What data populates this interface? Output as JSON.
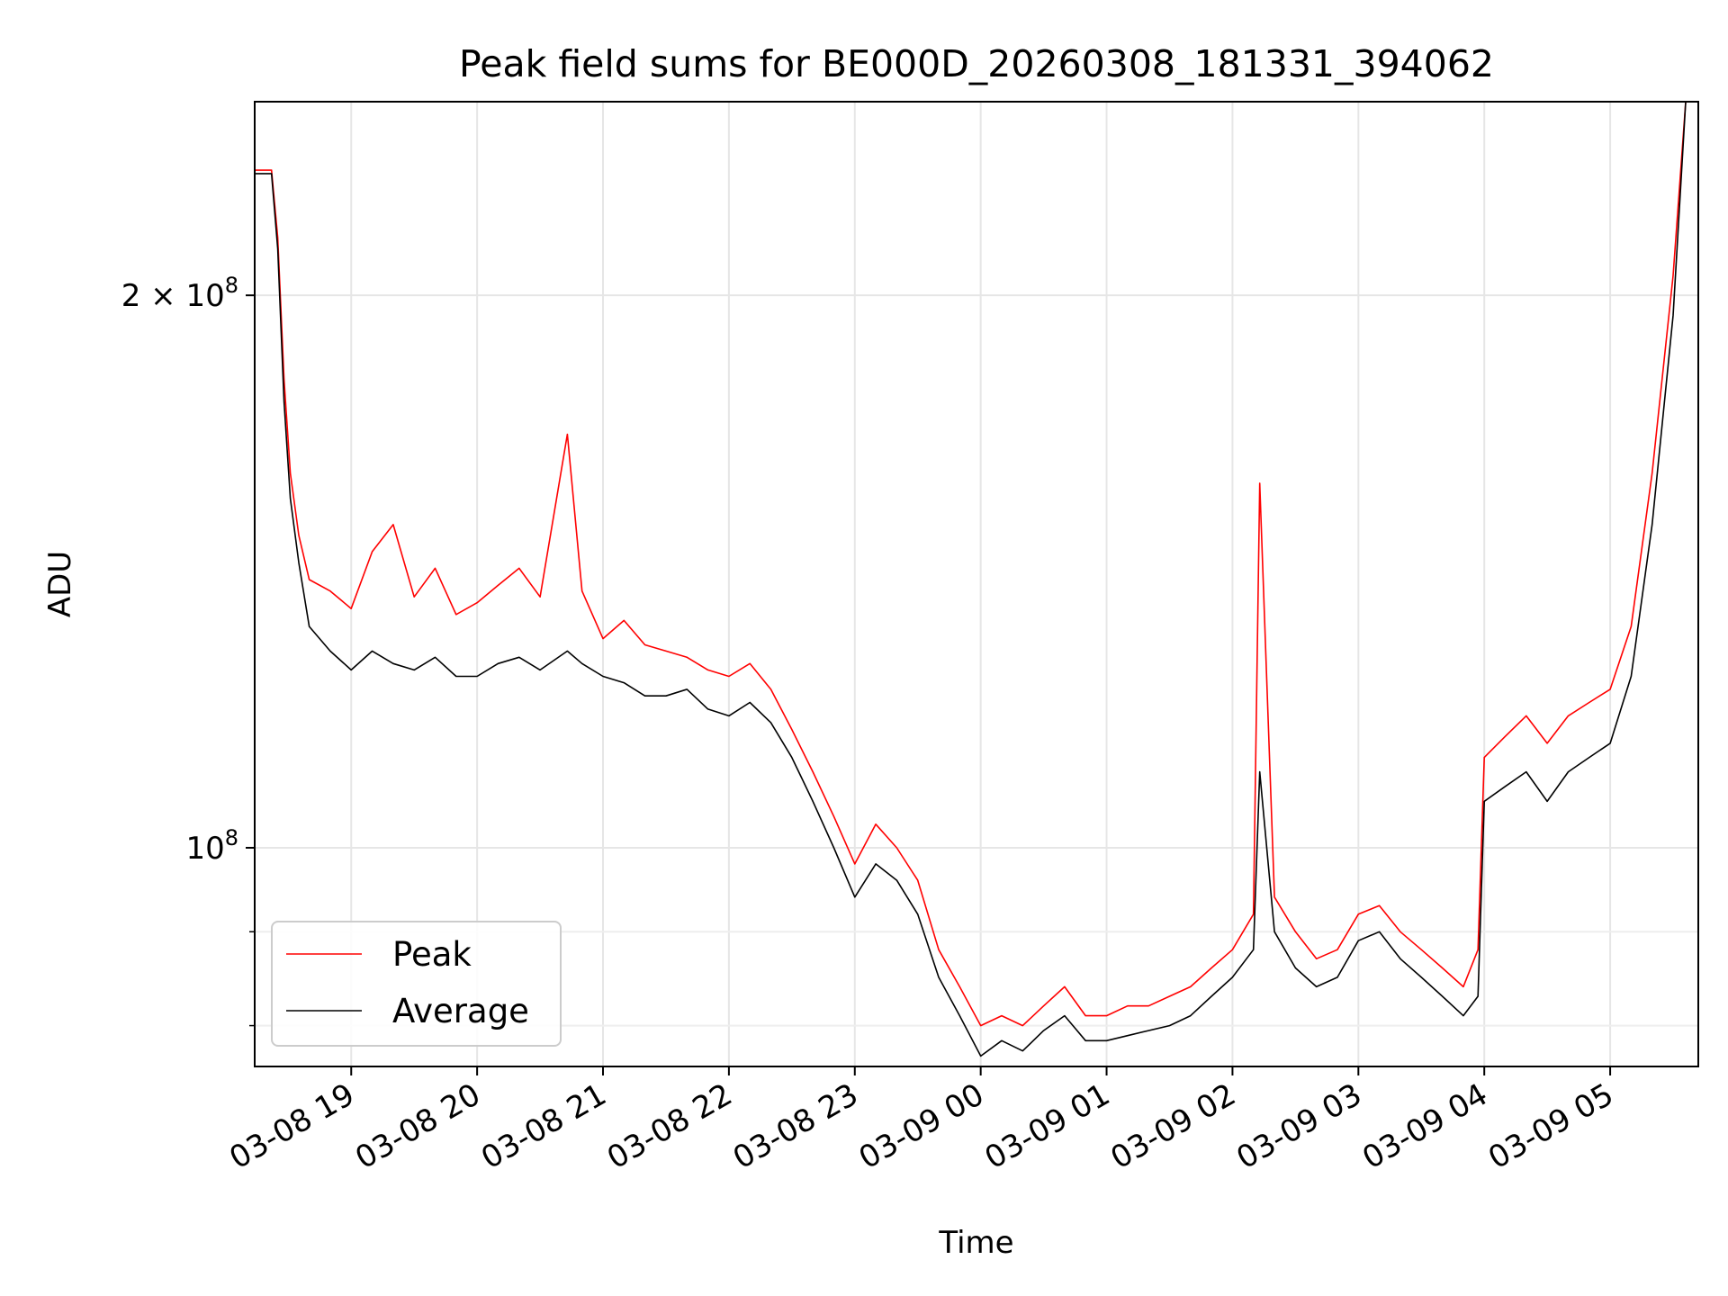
{
  "chart_data": {
    "type": "line",
    "title": "Peak field sums for BE000D_20260308_181331_394062",
    "xlabel": "Time",
    "ylabel": "ADU",
    "yscale": "log",
    "xlim": [
      "2026-03-08 18:14",
      "2026-03-09 05:42"
    ],
    "ylim": [
      76000000,
      255000000
    ],
    "grid": true,
    "legend": "lower-left",
    "x_ticks": [
      {
        "t": "2026-03-08 19:00",
        "label": "03-08 19"
      },
      {
        "t": "2026-03-08 20:00",
        "label": "03-08 20"
      },
      {
        "t": "2026-03-08 21:00",
        "label": "03-08 21"
      },
      {
        "t": "2026-03-08 22:00",
        "label": "03-08 22"
      },
      {
        "t": "2026-03-08 23:00",
        "label": "03-08 23"
      },
      {
        "t": "2026-03-09 00:00",
        "label": "03-09 00"
      },
      {
        "t": "2026-03-09 01:00",
        "label": "03-09 01"
      },
      {
        "t": "2026-03-09 02:00",
        "label": "03-09 02"
      },
      {
        "t": "2026-03-09 03:00",
        "label": "03-09 03"
      },
      {
        "t": "2026-03-09 04:00",
        "label": "03-09 04"
      },
      {
        "t": "2026-03-09 05:00",
        "label": "03-09 05"
      }
    ],
    "y_ticks_major": [
      {
        "value": 100000000,
        "mantissa": "",
        "exponent": "8"
      },
      {
        "value": 200000000,
        "mantissa": "2",
        "exponent": "8"
      }
    ],
    "y_ticks_minor": [
      80000000,
      90000000
    ],
    "series": [
      {
        "name": "Peak",
        "color": "#ff0000",
        "points": [
          [
            "2026-03-08 18:14",
            234000000
          ],
          [
            "2026-03-08 18:22",
            234000000
          ],
          [
            "2026-03-08 18:25",
            215000000
          ],
          [
            "2026-03-08 18:28",
            180000000
          ],
          [
            "2026-03-08 18:31",
            160000000
          ],
          [
            "2026-03-08 18:35",
            148000000
          ],
          [
            "2026-03-08 18:40",
            140000000
          ],
          [
            "2026-03-08 18:50",
            138000000
          ],
          [
            "2026-03-08 19:00",
            135000000
          ],
          [
            "2026-03-08 19:10",
            145000000
          ],
          [
            "2026-03-08 19:20",
            150000000
          ],
          [
            "2026-03-08 19:30",
            137000000
          ],
          [
            "2026-03-08 19:40",
            142000000
          ],
          [
            "2026-03-08 19:50",
            134000000
          ],
          [
            "2026-03-08 20:00",
            136000000
          ],
          [
            "2026-03-08 20:10",
            139000000
          ],
          [
            "2026-03-08 20:20",
            142000000
          ],
          [
            "2026-03-08 20:30",
            137000000
          ],
          [
            "2026-03-08 20:43",
            168000000
          ],
          [
            "2026-03-08 20:50",
            138000000
          ],
          [
            "2026-03-08 21:00",
            130000000
          ],
          [
            "2026-03-08 21:10",
            133000000
          ],
          [
            "2026-03-08 21:20",
            129000000
          ],
          [
            "2026-03-08 21:30",
            128000000
          ],
          [
            "2026-03-08 21:40",
            127000000
          ],
          [
            "2026-03-08 21:50",
            125000000
          ],
          [
            "2026-03-08 22:00",
            124000000
          ],
          [
            "2026-03-08 22:10",
            126000000
          ],
          [
            "2026-03-08 22:20",
            122000000
          ],
          [
            "2026-03-08 22:30",
            116000000
          ],
          [
            "2026-03-08 22:40",
            110000000
          ],
          [
            "2026-03-08 22:50",
            104000000
          ],
          [
            "2026-03-08 23:00",
            98000000
          ],
          [
            "2026-03-08 23:10",
            103000000
          ],
          [
            "2026-03-08 23:20",
            100000000
          ],
          [
            "2026-03-08 23:30",
            96000000
          ],
          [
            "2026-03-08 23:40",
            88000000
          ],
          [
            "2026-03-08 23:50",
            84000000
          ],
          [
            "2026-03-09 00:00",
            80000000
          ],
          [
            "2026-03-09 00:10",
            81000000
          ],
          [
            "2026-03-09 00:20",
            80000000
          ],
          [
            "2026-03-09 00:30",
            82000000
          ],
          [
            "2026-03-09 00:40",
            84000000
          ],
          [
            "2026-03-09 00:50",
            81000000
          ],
          [
            "2026-03-09 01:00",
            81000000
          ],
          [
            "2026-03-09 01:10",
            82000000
          ],
          [
            "2026-03-09 01:20",
            82000000
          ],
          [
            "2026-03-09 01:30",
            83000000
          ],
          [
            "2026-03-09 01:40",
            84000000
          ],
          [
            "2026-03-09 01:50",
            86000000
          ],
          [
            "2026-03-09 02:00",
            88000000
          ],
          [
            "2026-03-09 02:10",
            92000000
          ],
          [
            "2026-03-09 02:13",
            158000000
          ],
          [
            "2026-03-09 02:20",
            94000000
          ],
          [
            "2026-03-09 02:30",
            90000000
          ],
          [
            "2026-03-09 02:40",
            87000000
          ],
          [
            "2026-03-09 02:50",
            88000000
          ],
          [
            "2026-03-09 03:00",
            92000000
          ],
          [
            "2026-03-09 03:10",
            93000000
          ],
          [
            "2026-03-09 03:20",
            90000000
          ],
          [
            "2026-03-09 03:30",
            88000000
          ],
          [
            "2026-03-09 03:40",
            86000000
          ],
          [
            "2026-03-09 03:50",
            84000000
          ],
          [
            "2026-03-09 03:57",
            88000000
          ],
          [
            "2026-03-09 04:00",
            112000000
          ],
          [
            "2026-03-09 04:10",
            115000000
          ],
          [
            "2026-03-09 04:20",
            118000000
          ],
          [
            "2026-03-09 04:30",
            114000000
          ],
          [
            "2026-03-09 04:40",
            118000000
          ],
          [
            "2026-03-09 04:50",
            120000000
          ],
          [
            "2026-03-09 05:00",
            122000000
          ],
          [
            "2026-03-09 05:10",
            132000000
          ],
          [
            "2026-03-09 05:20",
            160000000
          ],
          [
            "2026-03-09 05:30",
            205000000
          ],
          [
            "2026-03-09 05:36",
            255000000
          ]
        ]
      },
      {
        "name": "Average",
        "color": "#000000",
        "points": [
          [
            "2026-03-08 18:14",
            233000000
          ],
          [
            "2026-03-08 18:22",
            233000000
          ],
          [
            "2026-03-08 18:25",
            212000000
          ],
          [
            "2026-03-08 18:28",
            175000000
          ],
          [
            "2026-03-08 18:31",
            155000000
          ],
          [
            "2026-03-08 18:35",
            143000000
          ],
          [
            "2026-03-08 18:40",
            132000000
          ],
          [
            "2026-03-08 18:50",
            128000000
          ],
          [
            "2026-03-08 19:00",
            125000000
          ],
          [
            "2026-03-08 19:10",
            128000000
          ],
          [
            "2026-03-08 19:20",
            126000000
          ],
          [
            "2026-03-08 19:30",
            125000000
          ],
          [
            "2026-03-08 19:40",
            127000000
          ],
          [
            "2026-03-08 19:50",
            124000000
          ],
          [
            "2026-03-08 20:00",
            124000000
          ],
          [
            "2026-03-08 20:10",
            126000000
          ],
          [
            "2026-03-08 20:20",
            127000000
          ],
          [
            "2026-03-08 20:30",
            125000000
          ],
          [
            "2026-03-08 20:43",
            128000000
          ],
          [
            "2026-03-08 20:50",
            126000000
          ],
          [
            "2026-03-08 21:00",
            124000000
          ],
          [
            "2026-03-08 21:10",
            123000000
          ],
          [
            "2026-03-08 21:20",
            121000000
          ],
          [
            "2026-03-08 21:30",
            121000000
          ],
          [
            "2026-03-08 21:40",
            122000000
          ],
          [
            "2026-03-08 21:50",
            119000000
          ],
          [
            "2026-03-08 22:00",
            118000000
          ],
          [
            "2026-03-08 22:10",
            120000000
          ],
          [
            "2026-03-08 22:20",
            117000000
          ],
          [
            "2026-03-08 22:30",
            112000000
          ],
          [
            "2026-03-08 22:40",
            106000000
          ],
          [
            "2026-03-08 22:50",
            100000000
          ],
          [
            "2026-03-08 23:00",
            94000000
          ],
          [
            "2026-03-08 23:10",
            98000000
          ],
          [
            "2026-03-08 23:20",
            96000000
          ],
          [
            "2026-03-08 23:30",
            92000000
          ],
          [
            "2026-03-08 23:40",
            85000000
          ],
          [
            "2026-03-08 23:50",
            81000000
          ],
          [
            "2026-03-09 00:00",
            77000000
          ],
          [
            "2026-03-09 00:10",
            78500000
          ],
          [
            "2026-03-09 00:20",
            77500000
          ],
          [
            "2026-03-09 00:30",
            79500000
          ],
          [
            "2026-03-09 00:40",
            81000000
          ],
          [
            "2026-03-09 00:50",
            78500000
          ],
          [
            "2026-03-09 01:00",
            78500000
          ],
          [
            "2026-03-09 01:10",
            79000000
          ],
          [
            "2026-03-09 01:20",
            79500000
          ],
          [
            "2026-03-09 01:30",
            80000000
          ],
          [
            "2026-03-09 01:40",
            81000000
          ],
          [
            "2026-03-09 01:50",
            83000000
          ],
          [
            "2026-03-09 02:00",
            85000000
          ],
          [
            "2026-03-09 02:10",
            88000000
          ],
          [
            "2026-03-09 02:13",
            110000000
          ],
          [
            "2026-03-09 02:20",
            90000000
          ],
          [
            "2026-03-09 02:30",
            86000000
          ],
          [
            "2026-03-09 02:40",
            84000000
          ],
          [
            "2026-03-09 02:50",
            85000000
          ],
          [
            "2026-03-09 03:00",
            89000000
          ],
          [
            "2026-03-09 03:10",
            90000000
          ],
          [
            "2026-03-09 03:20",
            87000000
          ],
          [
            "2026-03-09 03:30",
            85000000
          ],
          [
            "2026-03-09 03:40",
            83000000
          ],
          [
            "2026-03-09 03:50",
            81000000
          ],
          [
            "2026-03-09 03:57",
            83000000
          ],
          [
            "2026-03-09 04:00",
            106000000
          ],
          [
            "2026-03-09 04:10",
            108000000
          ],
          [
            "2026-03-09 04:20",
            110000000
          ],
          [
            "2026-03-09 04:30",
            106000000
          ],
          [
            "2026-03-09 04:40",
            110000000
          ],
          [
            "2026-03-09 04:50",
            112000000
          ],
          [
            "2026-03-09 05:00",
            114000000
          ],
          [
            "2026-03-09 05:10",
            124000000
          ],
          [
            "2026-03-09 05:20",
            150000000
          ],
          [
            "2026-03-09 05:30",
            195000000
          ],
          [
            "2026-03-09 05:36",
            255000000
          ]
        ]
      }
    ]
  }
}
